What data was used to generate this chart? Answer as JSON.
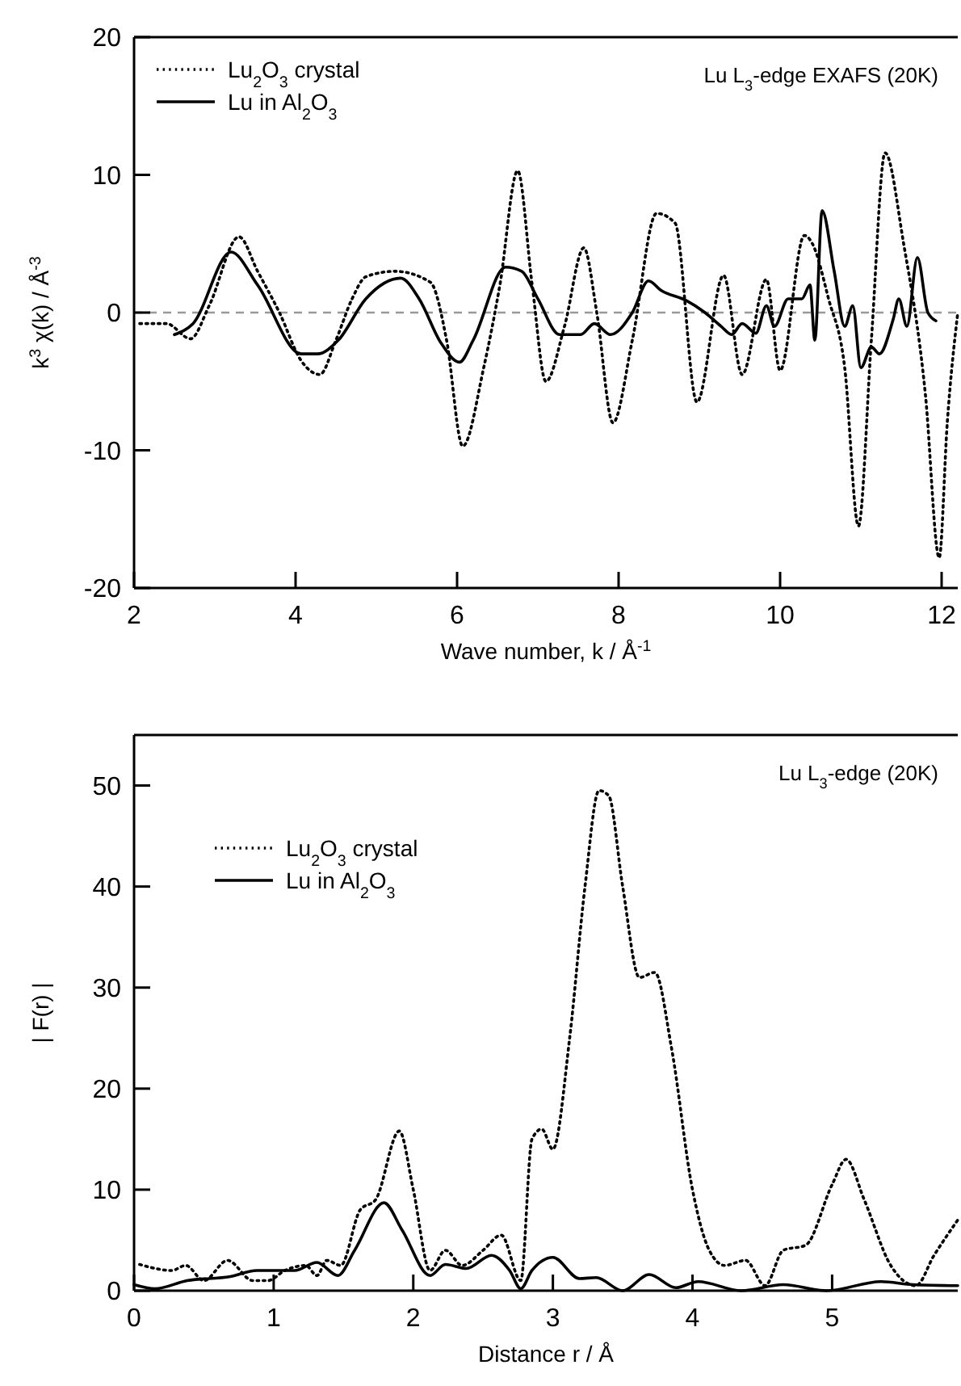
{
  "chart_data": [
    {
      "type": "line",
      "title": "Lu L$_{3}$-edge EXAFS (20K)",
      "xlabel": "Wave number,  k  / Å$^{-1}$",
      "ylabel": "k$^{3}$ χ(k)  / Å$^{-3}$",
      "xlim": [
        2,
        12.2
      ],
      "ylim": [
        -20,
        20
      ],
      "xticks": [
        2,
        4,
        6,
        8,
        10,
        12
      ],
      "yticks": [
        -20,
        -10,
        0,
        10,
        20
      ],
      "legend": "top left",
      "ref_lines": [
        {
          "axis": "y",
          "value": 0,
          "color": "#999999",
          "line_style": "dashed"
        }
      ],
      "series": [
        {
          "name": "Lu$_{2}$O$_{3}$ crystal",
          "color": "#000000",
          "line_style": "dotted",
          "x": [
            2.07,
            2.4,
            2.7,
            2.93,
            3.3,
            3.53,
            3.8,
            4.07,
            4.3,
            4.5,
            4.7,
            4.87,
            5.23,
            5.67,
            5.87,
            6.07,
            6.33,
            6.53,
            6.75,
            6.93,
            7.1,
            7.33,
            7.57,
            7.73,
            7.93,
            8.17,
            8.47,
            8.7,
            8.97,
            9.3,
            9.53,
            9.83,
            10.0,
            10.3,
            10.4,
            10.6,
            10.8,
            10.97,
            11.13,
            11.3,
            11.53,
            11.8,
            11.97,
            12.07,
            12.2
          ],
          "values": [
            -0.8,
            -0.8,
            -1.9,
            0.5,
            5.5,
            3,
            0,
            -3.5,
            -4.5,
            -2,
            1,
            2.6,
            3,
            2.2,
            -2,
            -9.7,
            -4,
            2,
            10.3,
            2,
            -5,
            -1,
            4.7,
            0,
            -8,
            -2,
            7.2,
            6.5,
            -6.5,
            2.7,
            -4.5,
            2.4,
            -4.2,
            5.6,
            5,
            1,
            -4,
            -15.5,
            -2,
            11.6,
            5,
            -6,
            -17.8,
            -8,
            0
          ]
        },
        {
          "name": "Lu in Al$_{2}$O$_{3}$",
          "color": "#000000",
          "line_style": "solid",
          "x": [
            2.5,
            2.73,
            3.2,
            3.53,
            4.07,
            4.27,
            4.53,
            4.87,
            5.3,
            5.53,
            5.8,
            6.03,
            6.2,
            6.6,
            6.8,
            7.0,
            7.27,
            7.53,
            7.7,
            7.9,
            8.17,
            8.37,
            8.53,
            8.83,
            9.07,
            9.27,
            9.4,
            9.53,
            9.7,
            9.83,
            9.93,
            10.1,
            10.27,
            10.37,
            10.43,
            10.52,
            10.67,
            10.8,
            10.9,
            11.0,
            11.13,
            11.23,
            11.4,
            11.47,
            11.57,
            11.7,
            11.83,
            11.93
          ],
          "values": [
            -1.6,
            -0.8,
            4.4,
            2,
            -3,
            -3,
            -2,
            1,
            2.5,
            1,
            -2.2,
            -3.6,
            -2,
            3.3,
            3,
            1,
            -1.6,
            -1.6,
            -0.8,
            -1.6,
            0,
            2.3,
            1.6,
            0.9,
            0,
            -1,
            -1.6,
            -0.8,
            -1.5,
            0.5,
            -1,
            1,
            1,
            2,
            -2,
            7.4,
            3,
            -1,
            0.5,
            -4,
            -2.5,
            -3,
            -0.5,
            1,
            -1,
            4,
            0,
            -0.6
          ]
        }
      ]
    },
    {
      "type": "line",
      "title": "Lu L$_{3}$-edge (20K)",
      "xlabel": "Distance  r  /  Å",
      "ylabel": "| F(r) |",
      "xlim": [
        0,
        5.9
      ],
      "ylim": [
        0,
        55
      ],
      "xticks": [
        0,
        1,
        2,
        3,
        4,
        5
      ],
      "yticks": [
        0,
        10,
        20,
        30,
        40,
        50
      ],
      "legend": "top left",
      "series": [
        {
          "name": "Lu$_{2}$O$_{3}$ crystal",
          "color": "#000000",
          "line_style": "dotted",
          "x": [
            0.04,
            0.27,
            0.37,
            0.5,
            0.67,
            0.85,
            0.96,
            1.08,
            1.23,
            1.31,
            1.38,
            1.48,
            1.62,
            1.73,
            1.9,
            2.0,
            2.12,
            2.23,
            2.35,
            2.5,
            2.63,
            2.77,
            2.85,
            2.92,
            3.0,
            3.12,
            3.23,
            3.33,
            3.4,
            3.5,
            3.62,
            3.73,
            3.85,
            4.0,
            4.12,
            4.23,
            4.38,
            4.52,
            4.65,
            4.81,
            5.0,
            5.1,
            5.23,
            5.42,
            5.6,
            5.73,
            5.9
          ],
          "values": [
            2.6,
            2,
            2.5,
            1,
            3,
            1,
            1,
            2,
            2.5,
            1.5,
            3,
            2.5,
            8,
            9,
            15.8,
            10,
            2,
            4,
            2.5,
            4,
            5.5,
            1,
            15,
            16,
            14,
            25,
            40,
            49.5,
            49,
            40,
            31,
            31.5,
            24,
            10,
            4,
            2.5,
            3,
            0.5,
            4,
            4.5,
            10.5,
            13,
            9,
            2.5,
            0.5,
            3.5,
            7
          ]
        },
        {
          "name": "Lu in Al$_{2}$O$_{3}$",
          "color": "#000000",
          "line_style": "solid",
          "x": [
            0,
            0.15,
            0.38,
            0.69,
            0.88,
            1.15,
            1.31,
            1.46,
            1.58,
            1.79,
            1.92,
            2.12,
            2.23,
            2.38,
            2.56,
            2.69,
            2.77,
            2.85,
            3.0,
            3.19,
            3.31,
            3.5,
            3.69,
            3.88,
            4.04,
            4.35,
            4.65,
            4.96,
            5.35,
            5.58,
            5.9
          ],
          "values": [
            0.6,
            0.2,
            1,
            1.4,
            2,
            2,
            2.8,
            1.5,
            4,
            8.7,
            6,
            1.5,
            2.6,
            2.2,
            3.5,
            2,
            0.2,
            2,
            3.3,
            1.2,
            1.3,
            0,
            1.6,
            0.3,
            0.9,
            0,
            0.6,
            0,
            0.9,
            0.6,
            0.5
          ]
        }
      ]
    }
  ]
}
